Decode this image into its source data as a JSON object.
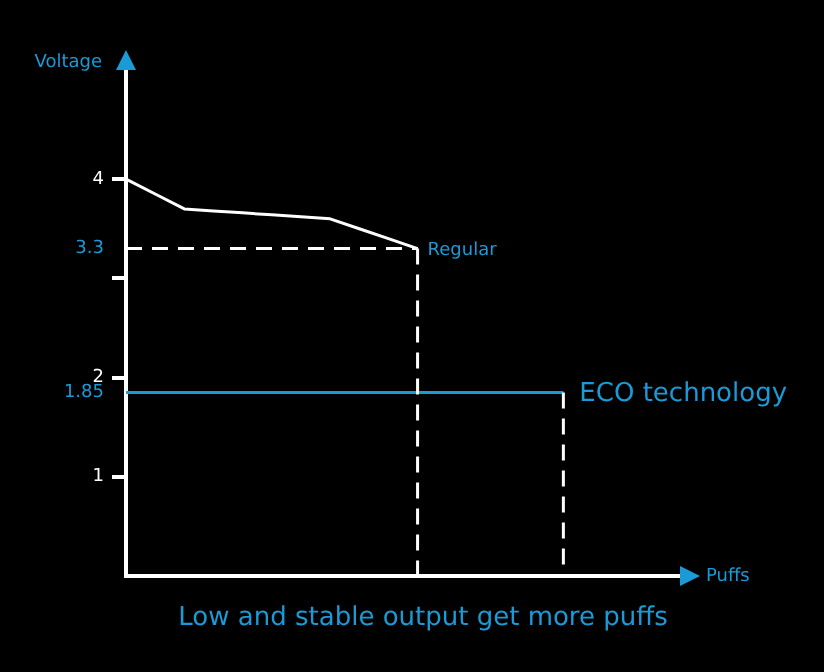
{
  "chart_data": {
    "type": "line",
    "xlabel": "Puffs",
    "ylabel": "Voltage",
    "categories": [
      null,
      null,
      null,
      null,
      null,
      null,
      null,
      null,
      null,
      null,
      null,
      null,
      null,
      null,
      null,
      null,
      null,
      null,
      null,
      null
    ],
    "ylim": [
      0,
      5.1
    ],
    "yticks": [
      1,
      1.85,
      2,
      {
        "value": 3,
        "label": null
      },
      3.3,
      4
    ],
    "tick_labels": "y",
    "grid": false,
    "legend": false,
    "marker": "none",
    "series": [
      {
        "name": "Regular",
        "color": "#ffffff",
        "values": [
          4,
          3.85,
          3.7,
          3.68,
          3.66,
          3.64,
          3.62,
          3.6,
          3.5,
          3.4,
          3.3,
          null,
          null,
          null,
          null,
          null,
          null,
          null,
          null,
          null
        ]
      },
      {
        "color": "#ffffff",
        "line_style": "dashed",
        "values": [
          3.3,
          3.3,
          3.3,
          3.3,
          3.3,
          3.3,
          3.3,
          3.3,
          3.3,
          3.3,
          3.3,
          null,
          null,
          null,
          null,
          null,
          null,
          null,
          null,
          null
        ],
        "errors": [
          null,
          null,
          null,
          null,
          null,
          null,
          null,
          null,
          null,
          null,
          [
            0,
            3.3
          ],
          null,
          null,
          null,
          null,
          null,
          null,
          null,
          null,
          null
        ]
      },
      {
        "name": "ECO technology",
        "color": "#1a9ad6",
        "values": [
          1.85,
          1.85,
          1.85,
          1.85,
          1.85,
          1.85,
          1.85,
          1.85,
          1.85,
          1.85,
          1.85,
          1.85,
          1.85,
          1.85,
          1.85,
          1.85,
          null,
          null,
          null,
          null
        ],
        "errors": [
          null,
          null,
          null,
          null,
          null,
          null,
          null,
          null,
          null,
          null,
          null,
          null,
          null,
          null,
          null,
          [
            0,
            1.85
          ],
          null,
          null,
          null,
          null
        ]
      }
    ],
    "annotations": [
      "Low and stable output get more puffs"
    ]
  }
}
